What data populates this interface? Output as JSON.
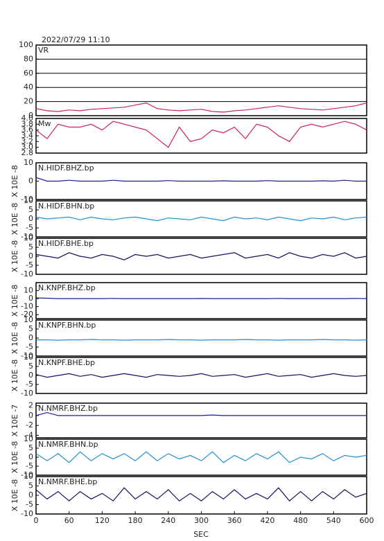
{
  "chart_data": {
    "type": "line",
    "title": "2022/07/29  11:10",
    "xlabel": "SEC",
    "x": [
      0,
      20,
      40,
      60,
      80,
      100,
      120,
      140,
      160,
      180,
      200,
      220,
      240,
      260,
      280,
      300,
      320,
      340,
      360,
      380,
      400,
      420,
      440,
      460,
      480,
      500,
      520,
      540,
      560,
      580,
      600
    ],
    "xlim": [
      0,
      600
    ],
    "xticks": [
      0,
      60,
      120,
      180,
      240,
      300,
      360,
      420,
      480,
      540,
      600
    ],
    "panels": [
      {
        "name": "VR",
        "color": "#cc2255",
        "grid": true,
        "ylim": [
          0,
          100
        ],
        "yticks": [
          0,
          20,
          40,
          60,
          80,
          100
        ],
        "values": [
          10,
          7,
          6,
          8,
          7,
          9,
          10,
          11,
          12,
          15,
          18,
          10,
          8,
          7,
          8,
          9,
          6,
          5,
          7,
          8,
          10,
          12,
          14,
          12,
          10,
          9,
          8,
          10,
          12,
          14,
          18
        ]
      },
      {
        "name": "Mw",
        "color": "#cc2255",
        "grid": false,
        "ylim": [
          2.8,
          4.0
        ],
        "yticks": [
          {
            "value": 2.8,
            "label": "2.8"
          },
          {
            "value": 3.0,
            "label": "3.0"
          },
          {
            "value": 3.2,
            "label": "3.2"
          },
          {
            "value": 3.4,
            "label": "3.4"
          },
          {
            "value": 3.6,
            "label": "3.6"
          },
          {
            "value": 3.8,
            "label": "3.8"
          },
          {
            "value": 4.0,
            "label": "4.0"
          }
        ],
        "values": [
          3.6,
          3.3,
          3.8,
          3.7,
          3.7,
          3.8,
          3.6,
          3.9,
          3.8,
          3.7,
          3.6,
          3.3,
          3.0,
          3.7,
          3.2,
          3.3,
          3.6,
          3.5,
          3.7,
          3.3,
          3.8,
          3.7,
          3.4,
          3.2,
          3.7,
          3.8,
          3.7,
          3.8,
          3.9,
          3.8,
          3.6
        ]
      },
      {
        "name": "N.HIDF.BHZ.bp",
        "ylabel": "X 10E -8",
        "color": "#1a1a99",
        "grid": false,
        "ylim": [
          -10,
          10
        ],
        "yticks": [
          -10,
          0,
          10
        ],
        "values": [
          2,
          0,
          0,
          0.5,
          0,
          0,
          0,
          0.5,
          0,
          0,
          0,
          0,
          0.3,
          0,
          0,
          0,
          0,
          0.2,
          0,
          0,
          0,
          0.3,
          0,
          0,
          0,
          0,
          0.2,
          0,
          0.5,
          0,
          0
        ]
      },
      {
        "name": "N.HIDF.BHN.bp",
        "ylabel": "X 10E -8",
        "color": "#1f8fd6",
        "grid": false,
        "ylim": [
          -10,
          10
        ],
        "yticks": [
          -10,
          -5,
          0,
          5,
          10
        ],
        "values": [
          1,
          0,
          0.5,
          1,
          -0.5,
          1,
          0,
          -0.5,
          0.5,
          1,
          0,
          -1,
          0.5,
          0,
          -0.5,
          1,
          0,
          -1,
          1,
          0,
          0.5,
          -0.5,
          1,
          0,
          -1,
          0.5,
          0,
          1,
          -0.5,
          0.5,
          1
        ]
      },
      {
        "name": "N.HIDF.BHE.bp",
        "ylabel": "X 10E -8",
        "color": "#101060",
        "grid": false,
        "ylim": [
          -10,
          10
        ],
        "yticks": [
          -10,
          -5,
          0,
          5,
          10
        ],
        "values": [
          1,
          0,
          -1,
          2,
          0,
          -1,
          1,
          0,
          -2,
          1,
          0,
          1,
          -1,
          0,
          1,
          -1,
          0,
          1,
          2,
          -1,
          0,
          1,
          -1,
          2,
          0,
          -1,
          1,
          0,
          2,
          -1,
          0
        ]
      },
      {
        "name": "N.KNPF.BHZ.bp",
        "ylabel": "X 10E -8",
        "color": "#1a1a99",
        "grid": false,
        "ylim": [
          -25,
          20
        ],
        "yticks": [
          -20,
          -10,
          0,
          10
        ],
        "values": [
          1,
          0.5,
          0,
          0,
          0,
          0,
          0,
          0.3,
          0,
          0,
          0,
          0,
          0,
          0,
          0,
          0.2,
          0,
          0,
          0,
          0,
          0,
          0,
          0.3,
          0,
          0,
          0,
          0,
          0,
          0,
          0.3,
          0
        ]
      },
      {
        "name": "N.KNPF.BHN.bp",
        "ylabel": "X 10E -8",
        "color": "#1f8fd6",
        "grid": false,
        "ylim": [
          -10,
          10
        ],
        "yticks": [
          -10,
          -5,
          0,
          5,
          10
        ],
        "values": [
          -1,
          -1,
          -1.2,
          -1,
          -1,
          -0.8,
          -1,
          -1,
          -1.2,
          -1,
          -1,
          -1,
          -0.8,
          -1,
          -1,
          -1.2,
          -1,
          -1,
          -1,
          -0.8,
          -1,
          -1,
          -1.2,
          -1,
          -1,
          -1,
          -0.8,
          -1,
          -1,
          -1.2,
          -1
        ]
      },
      {
        "name": "N.KNPF.BHE.bp",
        "ylabel": "X 10E -8",
        "color": "#101060",
        "grid": false,
        "ylim": [
          -10,
          10
        ],
        "yticks": [
          -10,
          -5,
          0,
          5,
          10
        ],
        "values": [
          0.5,
          -1,
          0,
          1,
          -0.5,
          0.5,
          -1,
          0,
          1,
          0,
          -1,
          0.5,
          0,
          -0.5,
          0,
          1,
          -0.5,
          0,
          0.5,
          -1,
          0,
          1,
          -0.5,
          0,
          0.5,
          -1,
          0,
          1,
          0,
          -0.5,
          0
        ]
      },
      {
        "name": "N.NMRF.BHZ.bp",
        "ylabel": "X 10E -7",
        "color": "#1a1a99",
        "grid": false,
        "ylim": [
          -4.5,
          2.5
        ],
        "yticks": [
          -4,
          -2,
          0,
          2
        ],
        "values": [
          0,
          0.6,
          0,
          0,
          0,
          0,
          0,
          0,
          0,
          0,
          0,
          0,
          0,
          0,
          0,
          0,
          0.1,
          0,
          0,
          0,
          0,
          0,
          0,
          0,
          0,
          0,
          0,
          0,
          0,
          0,
          0
        ]
      },
      {
        "name": "N.NMRF.BHN.bp",
        "ylabel": "X 10E -8",
        "color": "#1f8fd6",
        "grid": false,
        "ylim": [
          -10,
          10
        ],
        "yticks": [
          -10,
          -5,
          0,
          5,
          10
        ],
        "values": [
          2,
          -2,
          2,
          -3,
          3,
          -2,
          2,
          -1,
          2,
          -2,
          3,
          -2,
          2,
          -1,
          1,
          -2,
          3,
          -3,
          1,
          -2,
          2,
          -1,
          3,
          -3,
          0,
          -1,
          2,
          -2,
          1,
          0,
          1
        ]
      },
      {
        "name": "N.NMRF.BHE.bp",
        "ylabel": "X 10E -8",
        "color": "#101060",
        "grid": false,
        "ylim": [
          -10,
          10
        ],
        "yticks": [
          -10,
          -5,
          0,
          5,
          10
        ],
        "values": [
          3,
          -2,
          2,
          -3,
          2,
          -2,
          1,
          -3,
          4,
          -2,
          2,
          -2,
          3,
          -3,
          1,
          -3,
          2,
          -2,
          3,
          -2,
          1,
          -2,
          4,
          -3,
          2,
          -3,
          2,
          -2,
          3,
          -1,
          1
        ]
      }
    ]
  }
}
